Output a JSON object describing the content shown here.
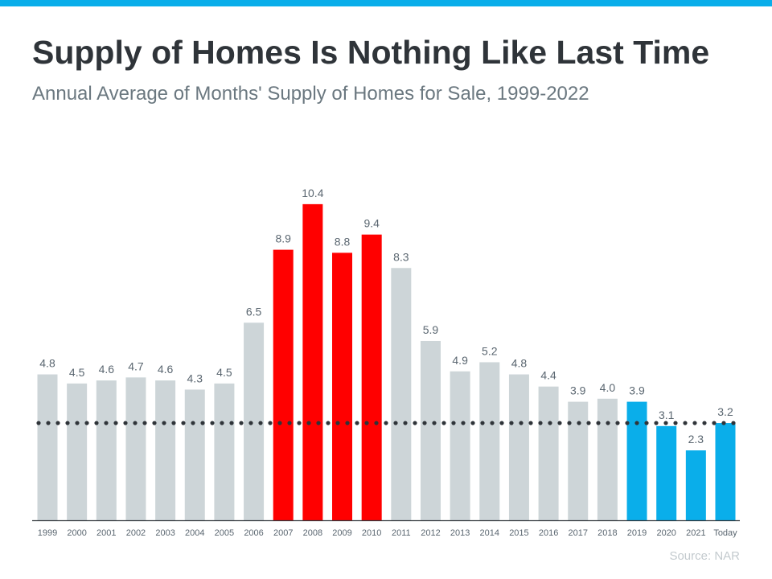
{
  "colors": {
    "accent_bar": "#0aaeea",
    "default_bar": "#cdd5d8",
    "highlight_bar": "#ff0000",
    "dotted_line": "#2f3439"
  },
  "chart_data": {
    "type": "bar",
    "title": "Supply of Homes Is Nothing Like Last Time",
    "subtitle": "Annual Average of Months' Supply of Homes for Sale, 1999-2022",
    "source": "Source: NAR",
    "categories": [
      "1999",
      "2000",
      "2001",
      "2002",
      "2003",
      "2004",
      "2005",
      "2006",
      "2007",
      "2008",
      "2009",
      "2010",
      "2011",
      "2012",
      "2013",
      "2014",
      "2015",
      "2016",
      "2017",
      "2018",
      "2019",
      "2020",
      "2021",
      "Today"
    ],
    "values": [
      4.8,
      4.5,
      4.6,
      4.7,
      4.6,
      4.3,
      4.5,
      6.5,
      8.9,
      10.4,
      8.8,
      9.4,
      8.3,
      5.9,
      4.9,
      5.2,
      4.8,
      4.4,
      3.9,
      4.0,
      3.9,
      3.1,
      2.3,
      3.2
    ],
    "bar_colors": [
      "gray",
      "gray",
      "gray",
      "gray",
      "gray",
      "gray",
      "gray",
      "gray",
      "red",
      "red",
      "red",
      "red",
      "gray",
      "gray",
      "gray",
      "gray",
      "gray",
      "gray",
      "gray",
      "gray",
      "blue",
      "blue",
      "blue",
      "blue"
    ],
    "reference_line": {
      "value": 3.2,
      "style": "dotted"
    },
    "ylim": [
      0,
      11
    ],
    "grid": false,
    "data_labels": true
  }
}
